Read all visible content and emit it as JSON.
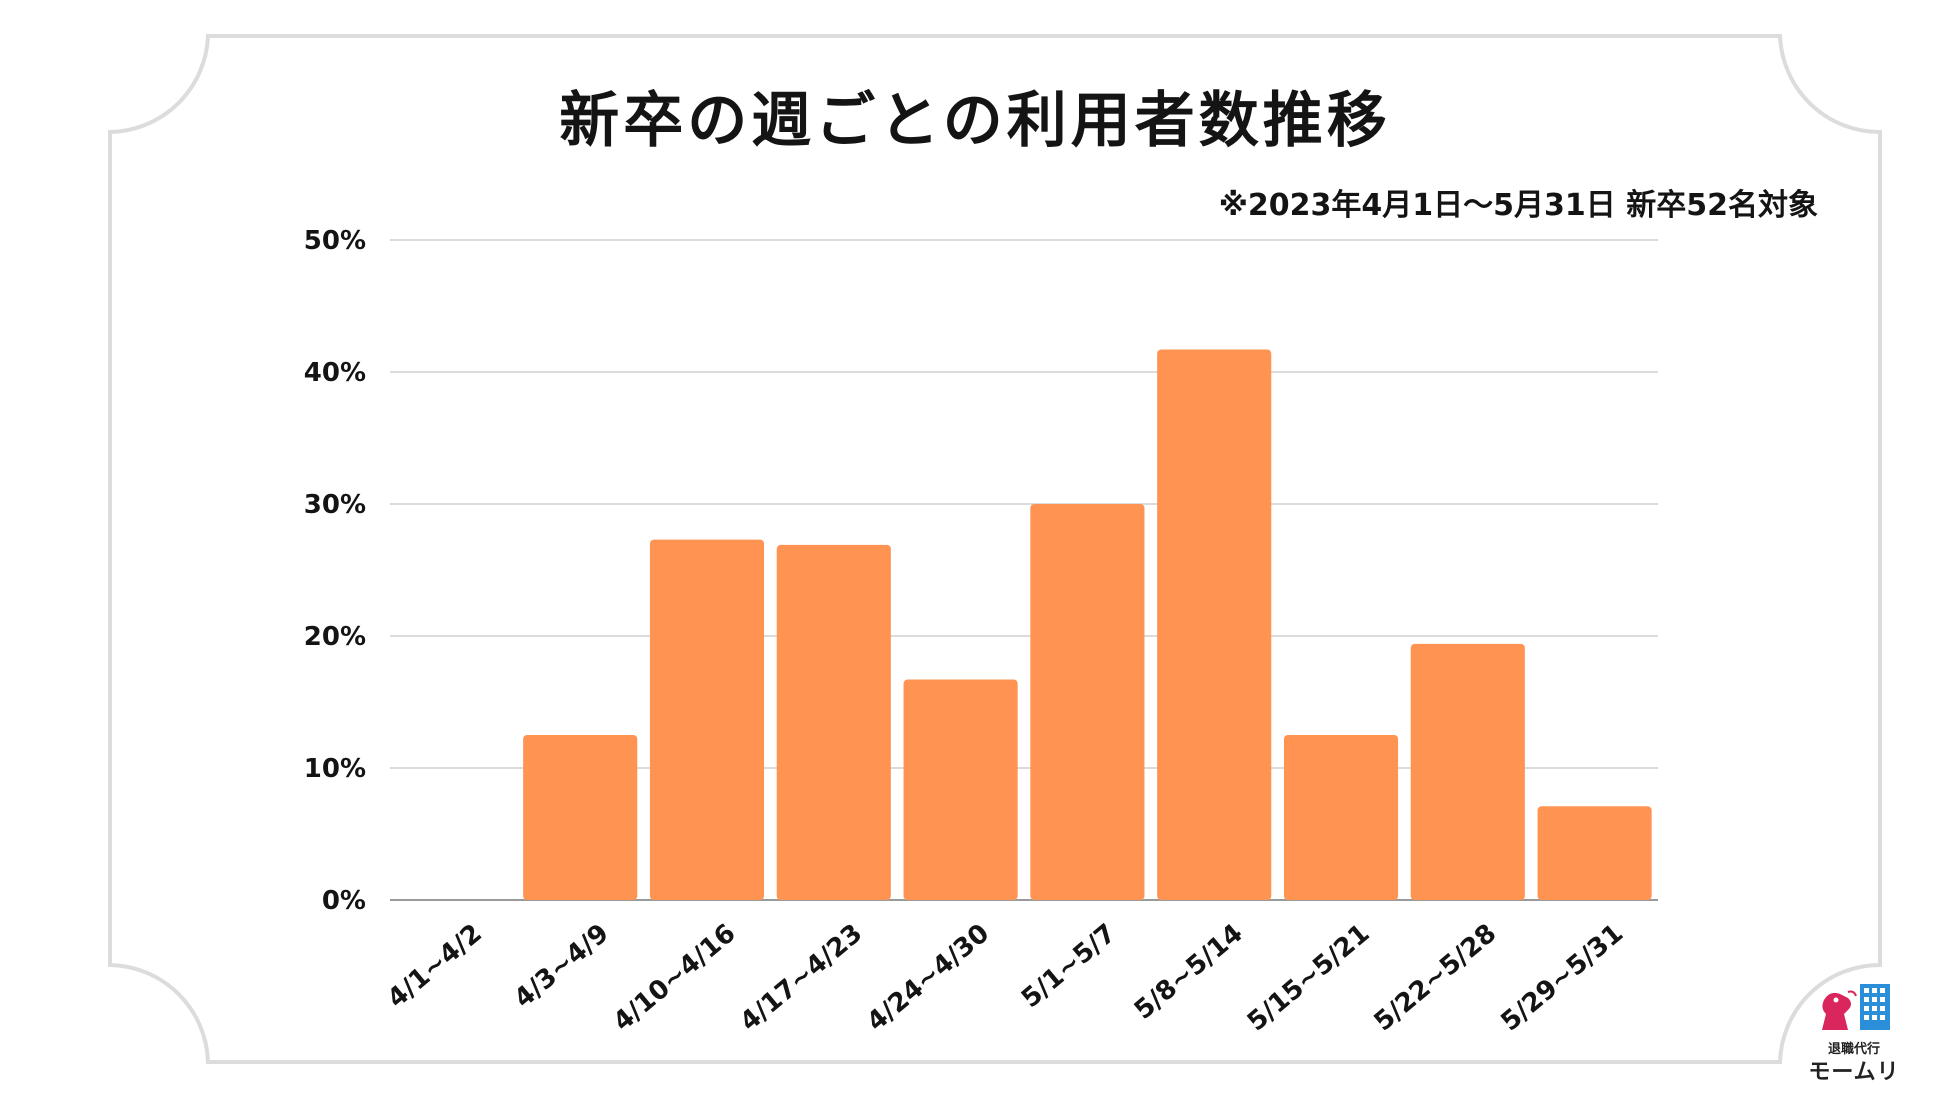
{
  "title": "新卒の週ごとの利用者数推移",
  "note": "※2023年4月1日～5月31日 新卒52名対象",
  "colors": {
    "bar": "#FF9452",
    "grid": "#cfcfcf",
    "frame": "#dcdcdc",
    "text": "#141414"
  },
  "logo": {
    "sub": "退職代行",
    "main": "モームリ"
  },
  "chart_data": {
    "type": "bar",
    "categories": [
      "4/1~4/2",
      "4/3~4/9",
      "4/10~4/16",
      "4/17~4/23",
      "4/24~4/30",
      "5/1~5/7",
      "5/8~5/14",
      "5/15~5/21",
      "5/22~5/28",
      "5/29~5/31"
    ],
    "values": [
      0,
      12.5,
      27.3,
      26.9,
      16.7,
      30.0,
      41.7,
      12.5,
      19.4,
      7.1
    ],
    "ylim": [
      0,
      50
    ],
    "yticks": [
      "0%",
      "10%",
      "20%",
      "30%",
      "40%",
      "50%"
    ],
    "grid": true
  }
}
